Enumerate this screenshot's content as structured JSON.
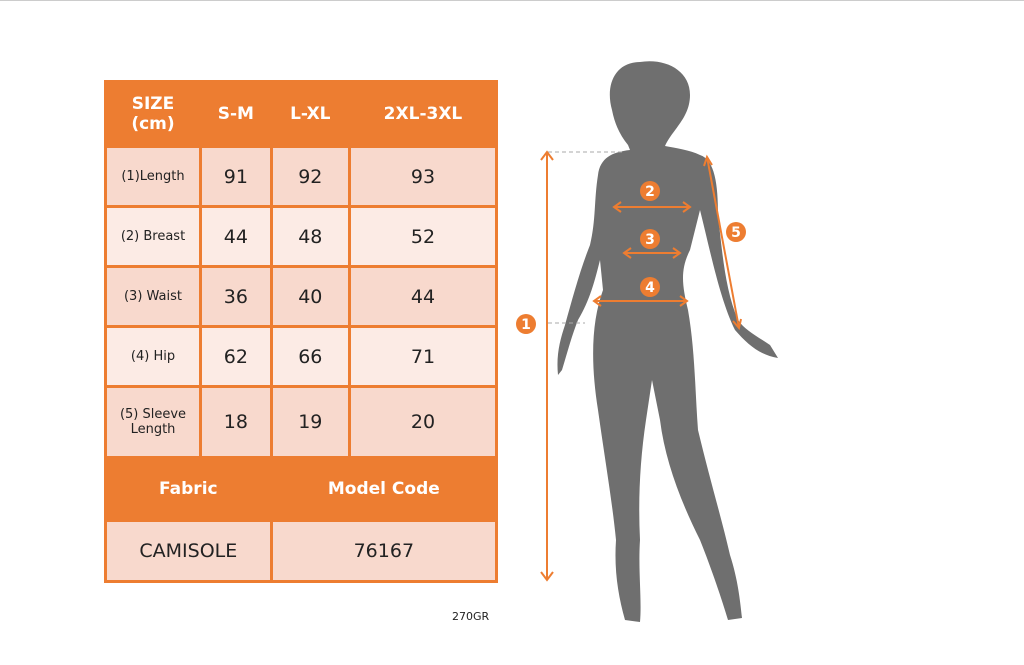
{
  "table": {
    "header": [
      "SIZE\n(cm)",
      "S-M",
      "L-XL",
      "2XL-3XL"
    ],
    "header_line1": "SIZE",
    "header_line2": "(cm)",
    "rows": [
      {
        "label": "(1)Length",
        "values": [
          "91",
          "92",
          "93"
        ]
      },
      {
        "label": "(2) Breast",
        "values": [
          "44",
          "48",
          "52"
        ]
      },
      {
        "label": "(3) Waist",
        "values": [
          "36",
          "40",
          "44"
        ]
      },
      {
        "label": "(4) Hip",
        "values": [
          "62",
          "66",
          "71"
        ]
      },
      {
        "label_line1": "(5) Sleeve",
        "label_line2": "Length",
        "values": [
          "18",
          "19",
          "20"
        ]
      }
    ],
    "fabric_label": "Fabric",
    "model_code_label": "Model Code",
    "fabric": "CAMISOLE",
    "model_code": "76167"
  },
  "weight": "270GR",
  "figure": {
    "markers": [
      "1",
      "2",
      "3",
      "4",
      "5"
    ]
  },
  "colors": {
    "accent": "#ed7d31",
    "row_dark": "#f8d9cd",
    "row_light": "#fcebe5",
    "silhouette": "#6f6f6f"
  }
}
